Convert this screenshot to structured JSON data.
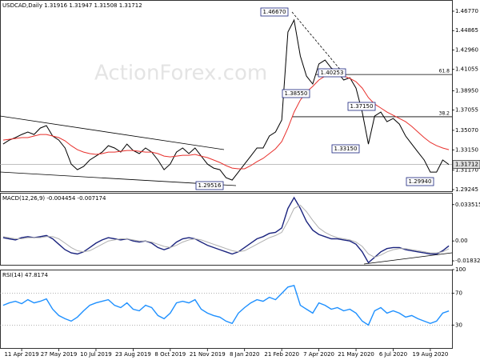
{
  "chart_data": [
    {
      "type": "line",
      "title": "USDCAD,Daily  1.31916 1.31947 1.31508 1.31712",
      "watermark": "ActionForex.com",
      "xlim": [
        -0.5,
        72.5
      ],
      "ylim": [
        1.2901,
        1.4787
      ],
      "grid": false,
      "yticks": [
        {
          "value": 1.4677,
          "label": "1.46770"
        },
        {
          "value": 1.44865,
          "label": "1.44865"
        },
        {
          "value": 1.4296,
          "label": "1.42960"
        },
        {
          "value": 1.41055,
          "label": "1.41055"
        },
        {
          "value": 1.3895,
          "label": "1.38950"
        },
        {
          "value": 1.37055,
          "label": "1.37055"
        },
        {
          "value": 1.3507,
          "label": "1.35070"
        },
        {
          "value": 1.3315,
          "label": "1.33150"
        },
        {
          "value": 1.3117,
          "label": "1.31170"
        },
        {
          "value": 1.29245,
          "label": "1.29245"
        }
      ],
      "current_price": {
        "value": 1.31712,
        "label": "1.31712"
      },
      "fib_levels": [
        {
          "value": 1.4055,
          "label": "61.8"
        },
        {
          "value": 1.364,
          "label": "38.2"
        }
      ],
      "annotations": [
        "1.46670",
        "1.38550",
        "1.40253",
        "1.37150",
        "1.33150",
        "1.29940",
        "1.29516"
      ],
      "series": [
        {
          "color": "#000000",
          "values": [
            1.3372,
            1.3411,
            1.3435,
            1.3466,
            1.349,
            1.3466,
            1.3529,
            1.3553,
            1.3451,
            1.3411,
            1.3333,
            1.3175,
            1.312,
            1.3152,
            1.3215,
            1.3254,
            1.3293,
            1.3356,
            1.3333,
            1.3293,
            1.3372,
            1.3309,
            1.3278,
            1.3333,
            1.3293,
            1.3215,
            1.312,
            1.3175,
            1.3293,
            1.3333,
            1.3278,
            1.3333,
            1.3254,
            1.3175,
            1.3136,
            1.312,
            1.3042,
            1.3018,
            1.3097,
            1.3175,
            1.3254,
            1.3333,
            1.3333,
            1.3451,
            1.349,
            1.3608,
            1.4473,
            1.459,
            1.4237,
            1.404,
            1.3962,
            1.4158,
            1.4197,
            1.4119,
            1.4079,
            1.4001,
            1.4024,
            1.3922,
            1.3686,
            1.3372,
            1.3647,
            1.3686,
            1.3592,
            1.3623,
            1.3568,
            1.3451,
            1.3372,
            1.3293,
            1.3215,
            1.3097,
            1.3097,
            1.3215,
            1.31712
          ]
        },
        {
          "color": "#e8302c",
          "values": [
            1.3411,
            1.3419,
            1.3427,
            1.3435,
            1.3435,
            1.3451,
            1.3466,
            1.3466,
            1.3451,
            1.3435,
            1.3404,
            1.3356,
            1.3317,
            1.3293,
            1.3278,
            1.327,
            1.3278,
            1.3293,
            1.3293,
            1.3301,
            1.3309,
            1.3309,
            1.3301,
            1.3293,
            1.3293,
            1.3278,
            1.3254,
            1.3246,
            1.3254,
            1.3262,
            1.3262,
            1.327,
            1.3254,
            1.3239,
            1.3215,
            1.3191,
            1.316,
            1.3136,
            1.3129,
            1.3129,
            1.316,
            1.3199,
            1.3231,
            1.3278,
            1.3325,
            1.3396,
            1.3529,
            1.3686,
            1.3804,
            1.3883,
            1.3938,
            1.4001,
            1.404,
            1.4056,
            1.4056,
            1.404,
            1.4017,
            1.3985,
            1.3922,
            1.3828,
            1.3765,
            1.3726,
            1.3686,
            1.3655,
            1.3623,
            1.3592,
            1.3545,
            1.349,
            1.3435,
            1.3388,
            1.3356,
            1.3333,
            1.3317
          ]
        }
      ]
    },
    {
      "type": "line",
      "title": "MACD(12,26,9) -0.004454 -0.007174",
      "xlim": [
        -0.5,
        72.5
      ],
      "ylim": [
        -0.0227,
        0.0444
      ],
      "grid": false,
      "yticks": [
        0.033515,
        {
          "value": 0,
          "label": "0.00"
        },
        -0.018324
      ],
      "series": [
        {
          "color": "#1a237e",
          "values": [
            0.003,
            0.002,
            0.001,
            0.003,
            0.004,
            0.003,
            0.004,
            0.005,
            0.002,
            -0.003,
            -0.008,
            -0.011,
            -0.012,
            -0.01,
            -0.006,
            -0.002,
            0.001,
            0.003,
            0.002,
            0.001,
            0.002,
            0.0,
            -0.001,
            0.0,
            -0.002,
            -0.006,
            -0.008,
            -0.006,
            -0.001,
            0.002,
            0.003,
            0.002,
            -0.001,
            -0.004,
            -0.006,
            -0.008,
            -0.01,
            -0.012,
            -0.01,
            -0.006,
            -0.002,
            0.002,
            0.004,
            0.007,
            0.008,
            0.012,
            0.03,
            0.04,
            0.03,
            0.018,
            0.01,
            0.006,
            0.004,
            0.002,
            0.002,
            0.001,
            0.0,
            -0.003,
            -0.01,
            -0.02,
            -0.015,
            -0.01,
            -0.007,
            -0.006,
            -0.006,
            -0.008,
            -0.009,
            -0.01,
            -0.011,
            -0.012,
            -0.012,
            -0.009,
            -0.004454
          ]
        },
        {
          "color": "#b0b0b0",
          "values": [
            0.004,
            0.003,
            0.002,
            0.002,
            0.003,
            0.003,
            0.003,
            0.004,
            0.004,
            0.002,
            -0.002,
            -0.006,
            -0.009,
            -0.01,
            -0.009,
            -0.006,
            -0.003,
            0.0,
            0.001,
            0.002,
            0.002,
            0.001,
            0.0,
            0.0,
            -0.001,
            -0.003,
            -0.005,
            -0.006,
            -0.004,
            -0.001,
            0.001,
            0.002,
            0.001,
            -0.001,
            -0.003,
            -0.005,
            -0.007,
            -0.009,
            -0.01,
            -0.009,
            -0.006,
            -0.003,
            0.0,
            0.003,
            0.005,
            0.008,
            0.018,
            0.03,
            0.033,
            0.027,
            0.019,
            0.012,
            0.008,
            0.005,
            0.003,
            0.002,
            0.001,
            -0.001,
            -0.005,
            -0.012,
            -0.015,
            -0.013,
            -0.01,
            -0.008,
            -0.007,
            -0.007,
            -0.008,
            -0.009,
            -0.01,
            -0.011,
            -0.011,
            -0.01,
            -0.007174
          ]
        }
      ]
    },
    {
      "type": "line",
      "title": "RSI(14) 47.8174",
      "xlim": [
        -0.5,
        72.5
      ],
      "ylim": [
        0,
        100
      ],
      "grid": true,
      "yticks": [
        100,
        70,
        30
      ],
      "xticks": [
        {
          "value": 3,
          "label": "11 Apr 2019"
        },
        {
          "value": 9,
          "label": "27 May 2019"
        },
        {
          "value": 15,
          "label": "10 Jul 2019"
        },
        {
          "value": 21,
          "label": "23 Aug 2019"
        },
        {
          "value": 27,
          "label": "8 Oct 2019"
        },
        {
          "value": 33,
          "label": "21 Nov 2019"
        },
        {
          "value": 39,
          "label": "8 Jan 2020"
        },
        {
          "value": 45,
          "label": "21 Feb 2020"
        },
        {
          "value": 51,
          "label": "7 Apr 2020"
        },
        {
          "value": 57,
          "label": "21 May 2020"
        },
        {
          "value": 63,
          "label": "6 Jul 2020"
        },
        {
          "value": 69,
          "label": "19 Aug 2020"
        }
      ],
      "series": [
        {
          "color": "#1e90ff",
          "values": [
            55,
            58,
            60,
            57,
            62,
            58,
            60,
            63,
            50,
            42,
            38,
            35,
            40,
            48,
            55,
            58,
            60,
            62,
            55,
            52,
            58,
            50,
            48,
            55,
            52,
            42,
            38,
            45,
            58,
            60,
            58,
            62,
            50,
            45,
            42,
            40,
            35,
            32,
            45,
            52,
            58,
            62,
            60,
            65,
            62,
            70,
            78,
            80,
            55,
            50,
            45,
            58,
            55,
            50,
            52,
            48,
            50,
            45,
            35,
            30,
            48,
            52,
            45,
            48,
            45,
            40,
            42,
            38,
            35,
            32,
            35,
            45,
            47.8174
          ]
        }
      ]
    }
  ]
}
